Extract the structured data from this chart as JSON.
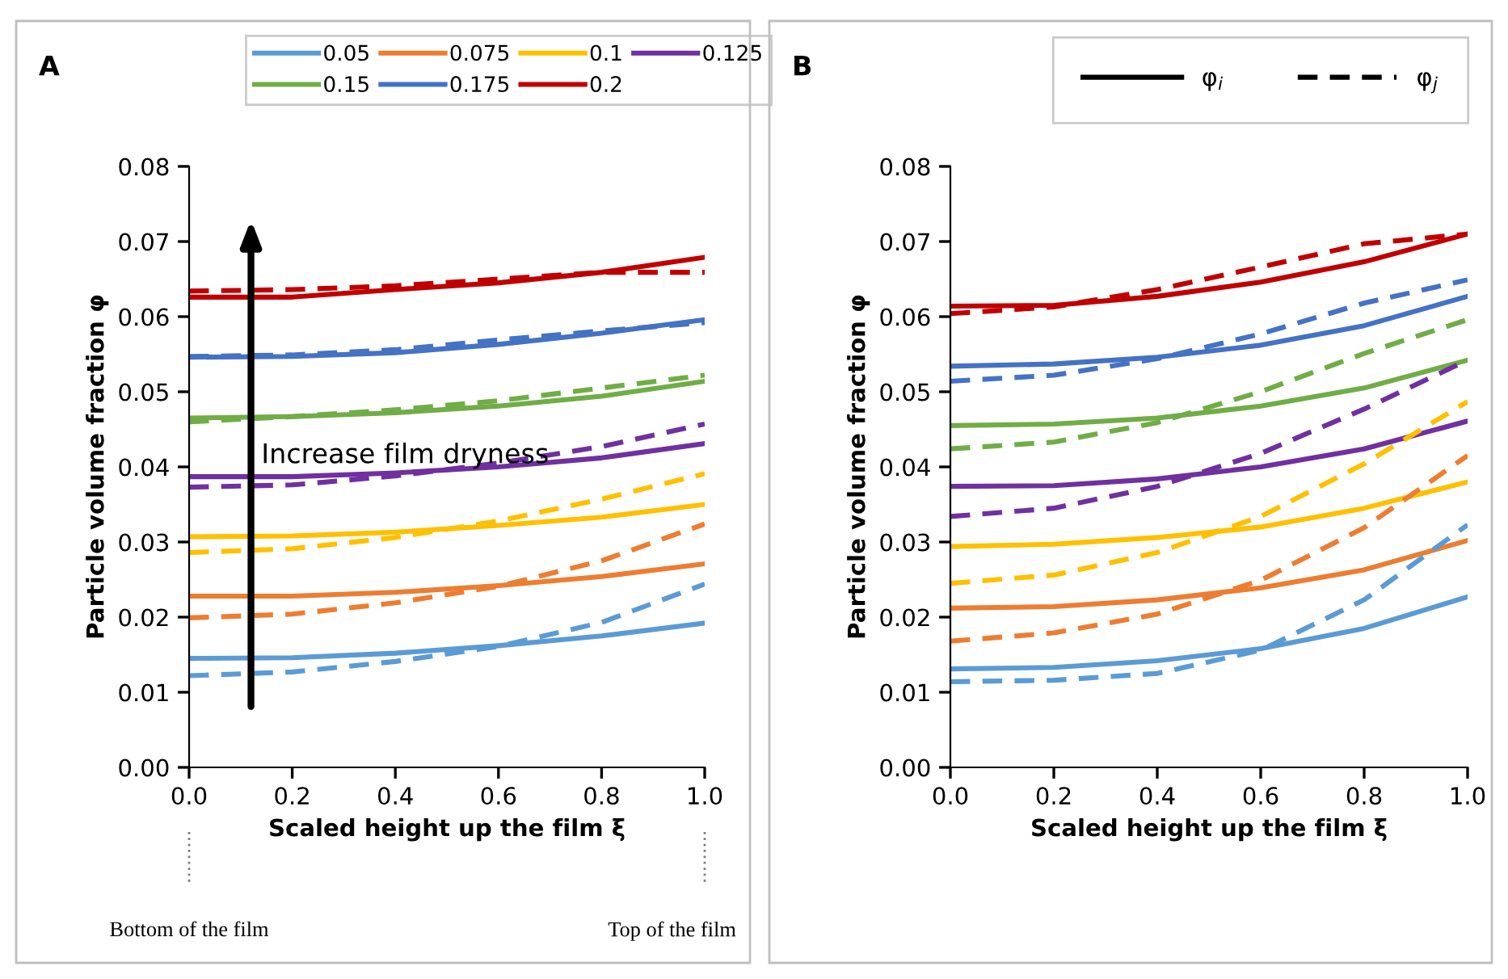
{
  "chart_data": [
    {
      "type": "line",
      "xlabel": "Scaled height up the film ξ",
      "ylabel": "Particle volume fraction φ",
      "annotations": [
        "A",
        "Increase film dryness",
        "Bottom of the film",
        "Top of the film"
      ],
      "legend": "top",
      "grid": false,
      "marker": "none",
      "xlim": [
        0,
        1
      ],
      "xticks": [
        {
          "value": 0,
          "label": "0.0"
        },
        {
          "value": 0.2,
          "label": "0.2"
        },
        {
          "value": 0.4,
          "label": "0.4"
        },
        {
          "value": 0.6,
          "label": "0.6"
        },
        {
          "value": 0.8,
          "label": "0.8"
        },
        {
          "value": 1,
          "label": "1.0"
        }
      ],
      "ylim": [
        0,
        0.08
      ],
      "yticks": [
        {
          "value": 0,
          "label": "0.00"
        },
        {
          "value": 0.01,
          "label": "0.01"
        },
        {
          "value": 0.02,
          "label": "0.02"
        },
        {
          "value": 0.03,
          "label": "0.03"
        },
        {
          "value": 0.04,
          "label": "0.04"
        },
        {
          "value": 0.05,
          "label": "0.05"
        },
        {
          "value": 0.06,
          "label": "0.06"
        },
        {
          "value": 0.07,
          "label": "0.07"
        },
        {
          "value": 0.08,
          "label": "0.08"
        }
      ],
      "x": [
        0,
        0.2,
        0.4,
        0.6,
        0.8,
        1.0
      ],
      "series": [
        {
          "name": "0.05",
          "color": "#5b9bd5",
          "line_style": "solid",
          "values": [
            0.0145,
            0.0146,
            0.0152,
            0.0162,
            0.0175,
            0.0192
          ]
        },
        {
          "name": "0.075",
          "color": "#ed7d31",
          "line_style": "solid",
          "values": [
            0.0228,
            0.0228,
            0.0233,
            0.0242,
            0.0254,
            0.0271
          ]
        },
        {
          "name": "0.1",
          "color": "#ffc000",
          "line_style": "solid",
          "values": [
            0.0307,
            0.0308,
            0.0313,
            0.0322,
            0.0333,
            0.035
          ]
        },
        {
          "name": "0.125",
          "color": "#7030a0",
          "line_style": "solid",
          "values": [
            0.0387,
            0.0387,
            0.0392,
            0.04,
            0.0412,
            0.0431
          ]
        },
        {
          "name": "0.15",
          "color": "#70ad47",
          "line_style": "solid",
          "values": [
            0.0465,
            0.0467,
            0.0472,
            0.0481,
            0.0494,
            0.0514
          ]
        },
        {
          "name": "0.175",
          "color": "#4472c4",
          "line_style": "solid",
          "values": [
            0.0546,
            0.0547,
            0.0552,
            0.0563,
            0.0578,
            0.0596
          ]
        },
        {
          "name": "0.2",
          "color": "#c00000",
          "line_style": "solid",
          "values": [
            0.0626,
            0.0626,
            0.0636,
            0.0645,
            0.0659,
            0.0679
          ]
        },
        {
          "color": "#5b9bd5",
          "line_style": "dashed",
          "values": [
            0.0122,
            0.0127,
            0.0141,
            0.0161,
            0.0193,
            0.0244
          ]
        },
        {
          "color": "#ed7d31",
          "line_style": "dashed",
          "values": [
            0.0199,
            0.0204,
            0.0219,
            0.0241,
            0.0275,
            0.0324
          ]
        },
        {
          "color": "#ffc000",
          "line_style": "dashed",
          "values": [
            0.0286,
            0.0291,
            0.0306,
            0.0328,
            0.0357,
            0.0391
          ]
        },
        {
          "color": "#7030a0",
          "line_style": "dashed",
          "values": [
            0.0373,
            0.0376,
            0.0388,
            0.0405,
            0.0427,
            0.0457
          ]
        },
        {
          "color": "#70ad47",
          "line_style": "dashed",
          "values": [
            0.046,
            0.0467,
            0.0476,
            0.0488,
            0.0505,
            0.0522
          ]
        },
        {
          "color": "#4472c4",
          "line_style": "dashed",
          "values": [
            0.0547,
            0.0549,
            0.0556,
            0.0569,
            0.0581,
            0.0592
          ]
        },
        {
          "color": "#c00000",
          "line_style": "dashed",
          "values": [
            0.0634,
            0.0636,
            0.0641,
            0.065,
            0.0659,
            0.0659
          ]
        }
      ]
    },
    {
      "type": "line",
      "xlabel": "Scaled height up the film ξ",
      "ylabel": "Particle volume fraction φ",
      "annotations": [
        "B",
        "φ$_{i}$",
        "φ$_{j}$"
      ],
      "legend": "top",
      "grid": false,
      "marker": "none",
      "xlim": [
        0,
        1
      ],
      "xticks": [
        {
          "value": 0,
          "label": "0.0"
        },
        {
          "value": 0.2,
          "label": "0.2"
        },
        {
          "value": 0.4,
          "label": "0.4"
        },
        {
          "value": 0.6,
          "label": "0.6"
        },
        {
          "value": 0.8,
          "label": "0.8"
        },
        {
          "value": 1,
          "label": "1.0"
        }
      ],
      "ylim": [
        0,
        0.08
      ],
      "yticks": [
        {
          "value": 0,
          "label": "0.00"
        },
        {
          "value": 0.01,
          "label": "0.01"
        },
        {
          "value": 0.02,
          "label": "0.02"
        },
        {
          "value": 0.03,
          "label": "0.03"
        },
        {
          "value": 0.04,
          "label": "0.04"
        },
        {
          "value": 0.05,
          "label": "0.05"
        },
        {
          "value": 0.06,
          "label": "0.06"
        },
        {
          "value": 0.07,
          "label": "0.07"
        },
        {
          "value": 0.08,
          "label": "0.08"
        }
      ],
      "x": [
        0,
        0.2,
        0.4,
        0.6,
        0.8,
        1.0
      ],
      "series": [
        {
          "color": "#5b9bd5",
          "line_style": "solid",
          "values": [
            0.0131,
            0.0133,
            0.0142,
            0.0158,
            0.0185,
            0.0227
          ]
        },
        {
          "color": "#ed7d31",
          "line_style": "solid",
          "values": [
            0.0212,
            0.0214,
            0.0223,
            0.0239,
            0.0263,
            0.0302
          ]
        },
        {
          "color": "#ffc000",
          "line_style": "solid",
          "values": [
            0.0294,
            0.0297,
            0.0306,
            0.032,
            0.0345,
            0.038
          ]
        },
        {
          "color": "#7030a0",
          "line_style": "solid",
          "values": [
            0.0374,
            0.0375,
            0.0384,
            0.04,
            0.0424,
            0.0461
          ]
        },
        {
          "color": "#70ad47",
          "line_style": "solid",
          "values": [
            0.0455,
            0.0457,
            0.0465,
            0.0481,
            0.0505,
            0.0542
          ]
        },
        {
          "color": "#4472c4",
          "line_style": "solid",
          "values": [
            0.0534,
            0.0537,
            0.0546,
            0.0562,
            0.0588,
            0.0627
          ]
        },
        {
          "color": "#c00000",
          "line_style": "solid",
          "values": [
            0.0614,
            0.0615,
            0.0627,
            0.0646,
            0.0673,
            0.071
          ]
        },
        {
          "color": "#5b9bd5",
          "line_style": "dashed",
          "values": [
            0.0114,
            0.0116,
            0.0125,
            0.0156,
            0.0223,
            0.0323
          ]
        },
        {
          "color": "#ed7d31",
          "line_style": "dashed",
          "values": [
            0.0168,
            0.0179,
            0.0204,
            0.0249,
            0.0319,
            0.0415
          ]
        },
        {
          "color": "#ffc000",
          "line_style": "dashed",
          "values": [
            0.0245,
            0.0256,
            0.0286,
            0.0334,
            0.0404,
            0.0487
          ]
        },
        {
          "color": "#7030a0",
          "line_style": "dashed",
          "values": [
            0.0334,
            0.0345,
            0.0374,
            0.0418,
            0.0477,
            0.0542
          ]
        },
        {
          "color": "#70ad47",
          "line_style": "dashed",
          "values": [
            0.0424,
            0.0433,
            0.0459,
            0.05,
            0.0551,
            0.0596
          ]
        },
        {
          "color": "#4472c4",
          "line_style": "dashed",
          "values": [
            0.0514,
            0.0522,
            0.0544,
            0.0577,
            0.0618,
            0.0649
          ]
        },
        {
          "color": "#c00000",
          "line_style": "dashed",
          "values": [
            0.0604,
            0.0613,
            0.0636,
            0.0666,
            0.0697,
            0.071
          ]
        }
      ]
    }
  ]
}
